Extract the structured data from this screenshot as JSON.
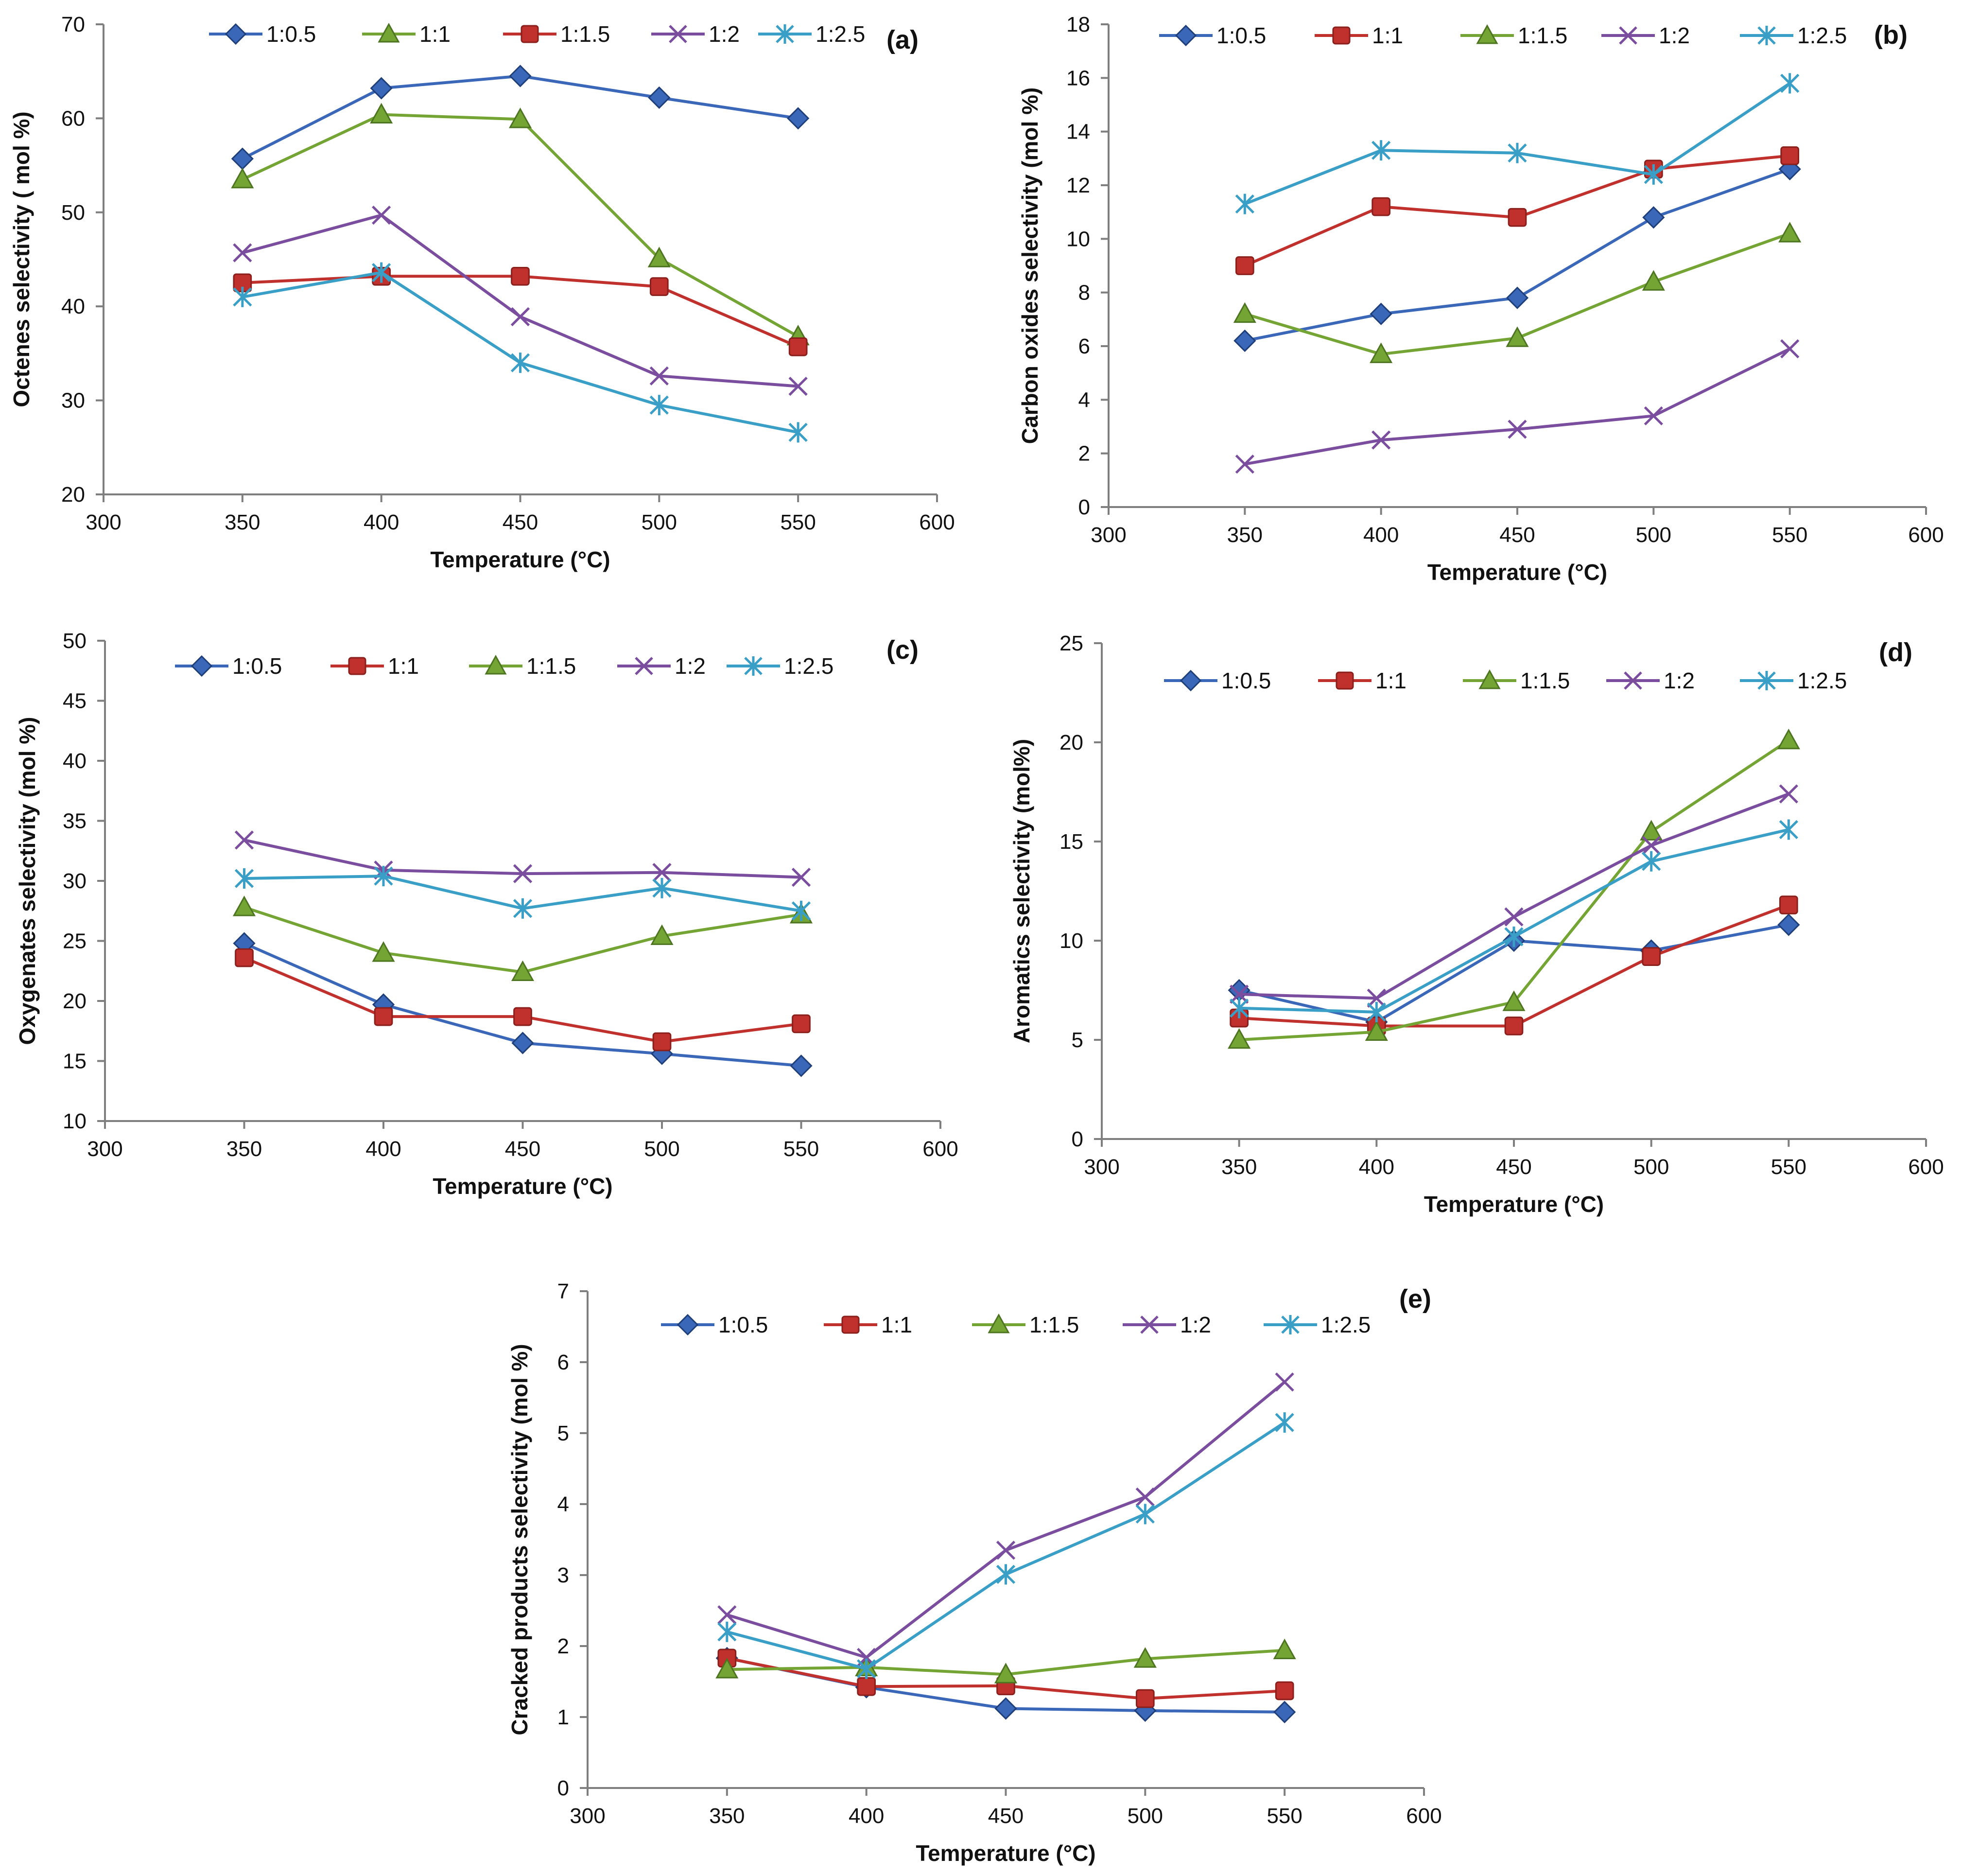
{
  "colors": {
    "1:0.5": "#3a67b8",
    "1:1": "#c0312e",
    "1:1.5": "#74a534",
    "1:2": "#7a4d9e",
    "1:2.5": "#3a9fc6"
  },
  "markers": {
    "1:0.5": "diamond",
    "1:1": "square",
    "1:1.5": "triangle",
    "1:2": "cross",
    "1:2.5": "asterisk"
  },
  "chart_data": [
    {
      "id": "a",
      "type": "line",
      "panel_label": "(a)",
      "xlabel": "Temperature (°C)",
      "ylabel": "Octenes selectivity ( mol %)",
      "xlim": [
        300,
        600
      ],
      "ylim": [
        20,
        70
      ],
      "xticks": [
        "300",
        "350",
        "400",
        "450",
        "500",
        "550",
        "600"
      ],
      "yticks": [
        "20",
        "30",
        "40",
        "50",
        "60",
        "70"
      ],
      "x": [
        350,
        400,
        450,
        500,
        550
      ],
      "legend": [
        "1:0.5",
        "1:1",
        "1:1.5",
        "1:2",
        "1:2.5"
      ],
      "series": [
        {
          "name": "1:0.5",
          "style": "1:0.5",
          "values": [
            55.7,
            63.2,
            64.5,
            62.2,
            60.0
          ]
        },
        {
          "name": "1:1",
          "style": "1:1.5",
          "values": [
            53.5,
            60.4,
            59.9,
            45.1,
            36.8
          ]
        },
        {
          "name": "1:1.5",
          "style": "1:1",
          "values": [
            42.5,
            43.2,
            43.2,
            42.1,
            35.7
          ]
        },
        {
          "name": "1:2",
          "style": "1:2",
          "values": [
            45.7,
            49.7,
            38.9,
            32.6,
            31.5
          ]
        },
        {
          "name": "1:2.5",
          "style": "1:2.5",
          "values": [
            41.0,
            43.6,
            34.0,
            29.5,
            26.6
          ]
        }
      ]
    },
    {
      "id": "b",
      "type": "line",
      "panel_label": "(b)",
      "xlabel": "Temperature (°C)",
      "ylabel": "Carbon oxides selectivity (mol %)",
      "xlim": [
        300,
        600
      ],
      "ylim": [
        0,
        18
      ],
      "xticks": [
        "300",
        "350",
        "400",
        "450",
        "500",
        "550",
        "600"
      ],
      "yticks": [
        "0",
        "2",
        "4",
        "6",
        "8",
        "10",
        "12",
        "14",
        "16",
        "18"
      ],
      "x": [
        350,
        400,
        450,
        500,
        550
      ],
      "legend": [
        "1:0.5",
        "1:1",
        "1:1.5",
        "1:2",
        "1:2.5"
      ],
      "series": [
        {
          "name": "1:0.5",
          "style": "1:0.5",
          "values": [
            6.2,
            7.2,
            7.8,
            10.8,
            12.6
          ]
        },
        {
          "name": "1:1",
          "style": "1:1",
          "values": [
            9.0,
            11.2,
            10.8,
            12.6,
            13.1
          ]
        },
        {
          "name": "1:1.5",
          "style": "1:1.5",
          "values": [
            7.2,
            5.7,
            6.3,
            8.4,
            10.2
          ]
        },
        {
          "name": "1:2",
          "style": "1:2",
          "values": [
            1.6,
            2.5,
            2.9,
            3.4,
            5.9
          ]
        },
        {
          "name": "1:2.5",
          "style": "1:2.5",
          "values": [
            11.3,
            13.3,
            13.2,
            12.4,
            15.8
          ]
        }
      ]
    },
    {
      "id": "c",
      "type": "line",
      "panel_label": "(c)",
      "xlabel": "Temperature (°C)",
      "ylabel": "Oxygenates selectivity (mol %)",
      "xlim": [
        300,
        600
      ],
      "ylim": [
        10,
        50
      ],
      "xticks": [
        "300",
        "350",
        "400",
        "450",
        "500",
        "550",
        "600"
      ],
      "yticks": [
        "10",
        "15",
        "20",
        "25",
        "30",
        "35",
        "40",
        "45",
        "50"
      ],
      "x": [
        350,
        400,
        450,
        500,
        550
      ],
      "legend": [
        "1:0.5",
        "1:1",
        "1:1.5",
        "1:2",
        "1:2.5"
      ],
      "series": [
        {
          "name": "1:0.5",
          "style": "1:0.5",
          "values": [
            24.8,
            19.7,
            16.5,
            15.6,
            14.6
          ]
        },
        {
          "name": "1:1",
          "style": "1:1",
          "values": [
            23.6,
            18.7,
            18.7,
            16.6,
            18.1
          ]
        },
        {
          "name": "1:1.5",
          "style": "1:1.5",
          "values": [
            27.8,
            24.0,
            22.4,
            25.4,
            27.2
          ]
        },
        {
          "name": "1:2",
          "style": "1:2",
          "values": [
            33.4,
            30.9,
            30.6,
            30.7,
            30.3
          ]
        },
        {
          "name": "1:2.5",
          "style": "1:2.5",
          "values": [
            30.2,
            30.4,
            27.7,
            29.4,
            27.5
          ]
        }
      ]
    },
    {
      "id": "d",
      "type": "line",
      "panel_label": "(d)",
      "xlabel": "Temperature (°C)",
      "ylabel": "Aromatics selectivity (mol%)",
      "xlim": [
        300,
        600
      ],
      "ylim": [
        0,
        25
      ],
      "xticks": [
        "300",
        "350",
        "400",
        "450",
        "500",
        "550",
        "600"
      ],
      "yticks": [
        "0",
        "5",
        "10",
        "15",
        "20",
        "25"
      ],
      "x": [
        350,
        400,
        450,
        500,
        550
      ],
      "legend": [
        "1:0.5",
        "1:1",
        "1:1.5",
        "1:2",
        "1:2.5"
      ],
      "series": [
        {
          "name": "1:0.5",
          "style": "1:0.5",
          "values": [
            7.5,
            5.9,
            10.0,
            9.5,
            10.8
          ]
        },
        {
          "name": "1:1",
          "style": "1:1",
          "values": [
            6.1,
            5.7,
            5.7,
            9.2,
            11.8
          ]
        },
        {
          "name": "1:1.5",
          "style": "1:1.5",
          "values": [
            5.0,
            5.4,
            6.9,
            15.5,
            20.1
          ]
        },
        {
          "name": "1:2",
          "style": "1:2",
          "values": [
            7.3,
            7.1,
            11.2,
            14.8,
            17.4
          ]
        },
        {
          "name": "1:2.5",
          "style": "1:2.5",
          "values": [
            6.6,
            6.4,
            10.2,
            14.0,
            15.6
          ]
        }
      ]
    },
    {
      "id": "e",
      "type": "line",
      "panel_label": "(e)",
      "xlabel": "Temperature (°C)",
      "ylabel": "Cracked products selectivity (mol %)",
      "xlim": [
        300,
        600
      ],
      "ylim": [
        0,
        7
      ],
      "xticks": [
        "300",
        "350",
        "400",
        "450",
        "500",
        "550",
        "600"
      ],
      "yticks": [
        "0",
        "1",
        "2",
        "3",
        "4",
        "5",
        "6",
        "7"
      ],
      "x": [
        350,
        400,
        450,
        500,
        550
      ],
      "legend": [
        "1:0.5",
        "1:1",
        "1:1.5",
        "1:2",
        "1:2.5"
      ],
      "series": [
        {
          "name": "1:0.5",
          "style": "1:0.5",
          "values": [
            1.83,
            1.42,
            1.12,
            1.09,
            1.07
          ]
        },
        {
          "name": "1:1",
          "style": "1:1",
          "values": [
            1.83,
            1.43,
            1.44,
            1.26,
            1.37
          ]
        },
        {
          "name": "1:1.5",
          "style": "1:1.5",
          "values": [
            1.67,
            1.7,
            1.6,
            1.82,
            1.94
          ]
        },
        {
          "name": "1:2",
          "style": "1:2",
          "values": [
            2.44,
            1.84,
            3.35,
            4.1,
            5.72
          ]
        },
        {
          "name": "1:2.5",
          "style": "1:2.5",
          "values": [
            2.2,
            1.68,
            3.01,
            3.86,
            5.15
          ]
        }
      ]
    }
  ]
}
